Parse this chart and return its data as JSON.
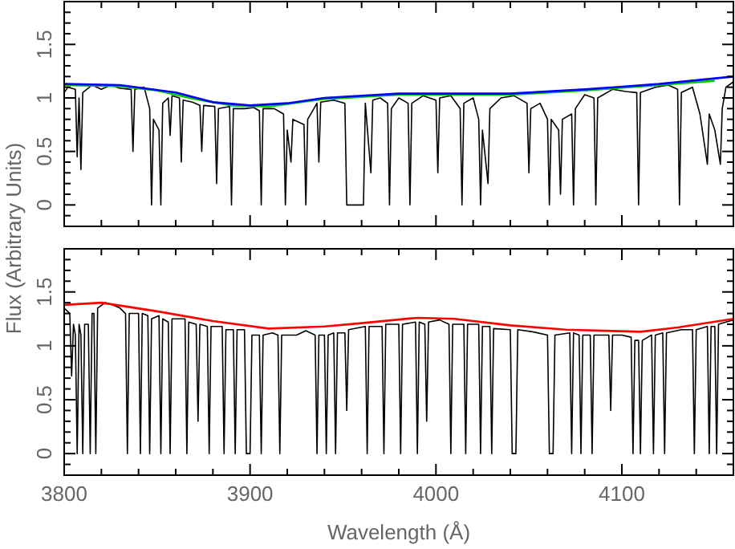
{
  "chart_data": [
    {
      "type": "line",
      "ylabel": "Flux (Arbitrary Units)",
      "xlim": [
        3800,
        4160
      ],
      "ylim": [
        -0.2,
        1.9
      ],
      "tick_labels": "y",
      "xticks": [
        3800,
        {
          "value": 3820,
          "label": null
        },
        {
          "value": 3840,
          "label": null
        },
        {
          "value": 3860,
          "label": null
        },
        {
          "value": 3880,
          "label": null
        },
        3900,
        {
          "value": 3920,
          "label": null
        },
        {
          "value": 3940,
          "label": null
        },
        {
          "value": 3960,
          "label": null
        },
        {
          "value": 3980,
          "label": null
        },
        4000,
        {
          "value": 4020,
          "label": null
        },
        {
          "value": 4040,
          "label": null
        },
        {
          "value": 4060,
          "label": null
        },
        {
          "value": 4080,
          "label": null
        },
        4100,
        {
          "value": 4120,
          "label": null
        },
        {
          "value": 4140,
          "label": null
        },
        {
          "value": 4160,
          "label": null
        }
      ],
      "yticks": [
        {
          "value": -0.2,
          "label": null
        },
        {
          "value": -0.1,
          "label": null
        },
        0,
        {
          "value": 0.1,
          "label": null
        },
        {
          "value": 0.2,
          "label": null
        },
        {
          "value": 0.3,
          "label": null
        },
        {
          "value": 0.4,
          "label": null
        },
        0.5,
        {
          "value": 0.6,
          "label": null
        },
        {
          "value": 0.7,
          "label": null
        },
        {
          "value": 0.8,
          "label": null
        },
        {
          "value": 0.9,
          "label": null
        },
        1,
        {
          "value": 1.1,
          "label": null
        },
        {
          "value": 1.2,
          "label": null
        },
        {
          "value": 1.3,
          "label": null
        },
        {
          "value": 1.4,
          "label": null
        },
        1.5,
        {
          "value": 1.6,
          "label": null
        },
        {
          "value": 1.7,
          "label": null
        },
        {
          "value": 1.8,
          "label": null
        },
        {
          "value": 1.9,
          "label": null
        }
      ],
      "series": [
        {
          "color": "#000000",
          "x": [
            3800,
            3802,
            3806,
            3807,
            3808,
            3809,
            3810,
            3815,
            3820,
            3825,
            3830,
            3836,
            3837,
            3838,
            3843,
            3846,
            3847,
            3848,
            3851,
            3852,
            3853,
            3856,
            3857,
            3858,
            3862,
            3863,
            3864,
            3869,
            3873,
            3874,
            3875,
            3881,
            3882,
            3883,
            3889,
            3890,
            3891,
            3897,
            3902,
            3905,
            3906,
            3907,
            3913,
            3918,
            3919,
            3920,
            3922,
            3923,
            3929,
            3930,
            3931,
            3936,
            3937,
            3938,
            3945,
            3951,
            3952,
            3961,
            3962,
            3965,
            3966,
            3970,
            3974,
            3975,
            3976,
            3980,
            3985,
            3986,
            3987,
            3993,
            4000,
            4001,
            4002,
            4008,
            4013,
            4014,
            4015,
            4020,
            4023,
            4024,
            4025,
            4028,
            4029,
            4035,
            4042,
            4049,
            4050,
            4051,
            4056,
            4060,
            4061,
            4062,
            4066,
            4067,
            4068,
            4073,
            4074,
            4075,
            4080,
            4085,
            4086,
            4087,
            4095,
            4102,
            4108,
            4109,
            4110,
            4118,
            4125,
            4130,
            4131,
            4132,
            4138,
            4142,
            4146,
            4147,
            4150,
            4153,
            4154,
            4156,
            4160
          ],
          "values": [
            1.05,
            1.1,
            1.08,
            0.45,
            1.0,
            0.33,
            1.05,
            1.12,
            1.08,
            1.12,
            1.09,
            1.08,
            0.5,
            1.08,
            1.1,
            0.9,
            0.0,
            0.8,
            0.7,
            0.0,
            0.95,
            1.0,
            0.65,
            1.02,
            1.0,
            0.4,
            0.98,
            0.96,
            0.93,
            0.5,
            0.93,
            0.92,
            0.2,
            0.9,
            0.92,
            0.0,
            0.9,
            0.9,
            0.91,
            0.88,
            0.0,
            0.9,
            0.9,
            0.85,
            0.0,
            0.7,
            0.4,
            0.8,
            0.75,
            0.0,
            0.8,
            0.95,
            0.4,
            0.96,
            0.98,
            0.95,
            0.0,
            0.0,
            0.95,
            0.3,
            0.98,
            1.0,
            0.95,
            0.0,
            0.9,
            1.0,
            0.95,
            0.0,
            0.95,
            1.02,
            0.98,
            0.3,
            1.0,
            1.02,
            0.9,
            0.0,
            0.95,
            1.0,
            0.8,
            0.0,
            0.7,
            0.2,
            0.9,
            1.0,
            1.02,
            0.95,
            0.3,
            0.9,
            0.95,
            0.8,
            0.0,
            0.8,
            0.7,
            0.1,
            0.8,
            0.85,
            0.0,
            0.9,
            1.03,
            1.0,
            0.0,
            1.0,
            1.08,
            1.06,
            1.05,
            0.0,
            1.05,
            1.1,
            1.12,
            1.08,
            0.0,
            1.05,
            1.1,
            0.85,
            0.38,
            0.85,
            0.7,
            0.38,
            0.9,
            1.1,
            1.15
          ]
        },
        {
          "color": "#00cc00",
          "x": [
            3800,
            3830,
            3850,
            3870,
            3890,
            3910,
            3940,
            3980,
            4040,
            4080,
            4120,
            4150
          ],
          "values": [
            1.12,
            1.11,
            1.07,
            0.99,
            0.93,
            0.92,
            0.99,
            1.03,
            1.03,
            1.07,
            1.12,
            1.16
          ]
        },
        {
          "color": "#0000ff",
          "x": [
            3800,
            3830,
            3860,
            3880,
            3900,
            3920,
            3940,
            3980,
            4040,
            4080,
            4120,
            4160
          ],
          "values": [
            1.13,
            1.12,
            1.05,
            0.96,
            0.93,
            0.95,
            1.0,
            1.04,
            1.04,
            1.08,
            1.13,
            1.2
          ]
        }
      ]
    },
    {
      "type": "line",
      "xlabel": "Wavelength (Å)",
      "xlim": [
        3800,
        4160
      ],
      "ylim": [
        -0.2,
        1.9
      ],
      "xticks": [
        3800,
        {
          "value": 3820,
          "label": null
        },
        {
          "value": 3840,
          "label": null
        },
        {
          "value": 3860,
          "label": null
        },
        {
          "value": 3880,
          "label": null
        },
        3900,
        {
          "value": 3920,
          "label": null
        },
        {
          "value": 3940,
          "label": null
        },
        {
          "value": 3960,
          "label": null
        },
        {
          "value": 3980,
          "label": null
        },
        4000,
        {
          "value": 4020,
          "label": null
        },
        {
          "value": 4040,
          "label": null
        },
        {
          "value": 4060,
          "label": null
        },
        {
          "value": 4080,
          "label": null
        },
        4100,
        {
          "value": 4120,
          "label": null
        },
        {
          "value": 4140,
          "label": null
        },
        {
          "value": 4160,
          "label": null
        }
      ],
      "yticks": [
        {
          "value": -0.2,
          "label": null
        },
        {
          "value": -0.1,
          "label": null
        },
        0,
        {
          "value": 0.1,
          "label": null
        },
        {
          "value": 0.2,
          "label": null
        },
        {
          "value": 0.3,
          "label": null
        },
        {
          "value": 0.4,
          "label": null
        },
        0.5,
        {
          "value": 0.6,
          "label": null
        },
        {
          "value": 0.7,
          "label": null
        },
        {
          "value": 0.8,
          "label": null
        },
        {
          "value": 0.9,
          "label": null
        },
        1,
        {
          "value": 1.1,
          "label": null
        },
        {
          "value": 1.2,
          "label": null
        },
        {
          "value": 1.3,
          "label": null
        },
        {
          "value": 1.4,
          "label": null
        },
        1.5,
        {
          "value": 1.6,
          "label": null
        },
        {
          "value": 1.7,
          "label": null
        },
        {
          "value": 1.8,
          "label": null
        },
        {
          "value": 1.9,
          "label": null
        }
      ],
      "series": [
        {
          "color": "#000000",
          "x": [
            3800,
            3803,
            3804,
            3805,
            3806,
            3807,
            3808,
            3809,
            3810,
            3811,
            3813,
            3814,
            3815,
            3816,
            3817,
            3818,
            3822,
            3826,
            3830,
            3833,
            3834,
            3835,
            3840,
            3841,
            3842,
            3845,
            3846,
            3847,
            3851,
            3852,
            3853,
            3856,
            3857,
            3858,
            3865,
            3866,
            3867,
            3871,
            3872,
            3873,
            3877,
            3878,
            3879,
            3885,
            3886,
            3887,
            3891,
            3892,
            3893,
            3897,
            3898,
            3900,
            3901,
            3905,
            3906,
            3907,
            3912,
            3915,
            3916,
            3917,
            3925,
            3930,
            3935,
            3936,
            3937,
            3940,
            3941,
            3942,
            3945,
            3946,
            3947,
            3951,
            3952,
            3953,
            3962,
            3963,
            3964,
            3971,
            3972,
            3973,
            3980,
            3981,
            3982,
            3989,
            3990,
            3991,
            3994,
            3995,
            3996,
            4002,
            4007,
            4008,
            4009,
            4015,
            4016,
            4017,
            4023,
            4024,
            4025,
            4029,
            4030,
            4031,
            4040,
            4041,
            4043,
            4044,
            4052,
            4060,
            4061,
            4063,
            4064,
            4072,
            4073,
            4074,
            4077,
            4078,
            4079,
            4083,
            4084,
            4085,
            4093,
            4094,
            4095,
            4100,
            4105,
            4106,
            4107,
            4109,
            4110,
            4111,
            4116,
            4117,
            4118,
            4122,
            4123,
            4124,
            4132,
            4138,
            4139,
            4140,
            4146,
            4147,
            4148,
            4150,
            4151,
            4152,
            4156,
            4160
          ],
          "values": [
            1.35,
            1.3,
            0.72,
            1.2,
            1.1,
            0,
            1.2,
            1.1,
            0,
            1.2,
            1.2,
            0,
            1.3,
            1.3,
            0,
            1.35,
            1.4,
            1.38,
            1.35,
            1.3,
            0,
            1.3,
            1.3,
            0,
            1.3,
            1.28,
            0,
            1.25,
            1.28,
            0,
            1.25,
            1.22,
            0,
            1.25,
            1.25,
            0,
            1.22,
            1.2,
            0.3,
            1.2,
            1.18,
            0,
            1.18,
            1.18,
            0,
            1.15,
            1.15,
            0,
            1.15,
            1.15,
            0,
            0,
            1.1,
            1.1,
            0,
            1.1,
            1.12,
            1.1,
            0,
            1.1,
            1.1,
            1.14,
            1.1,
            0,
            1.1,
            1.1,
            0,
            1.1,
            1.12,
            0,
            1.12,
            1.12,
            0.4,
            1.15,
            1.18,
            0,
            1.18,
            1.18,
            0,
            1.2,
            1.2,
            0,
            1.2,
            1.22,
            0,
            1.22,
            1.2,
            0.3,
            1.22,
            1.24,
            1.2,
            0,
            1.2,
            1.2,
            0,
            1.2,
            1.2,
            0,
            1.18,
            1.18,
            0,
            1.16,
            1.15,
            0,
            0,
            1.15,
            1.13,
            1.1,
            0,
            0,
            1.1,
            1.12,
            0,
            1.12,
            1.1,
            0,
            1.1,
            1.1,
            0,
            1.1,
            1.1,
            0.4,
            1.1,
            1.1,
            1.08,
            0,
            1.05,
            1.05,
            0,
            1.05,
            1.1,
            0,
            1.1,
            1.12,
            0,
            1.12,
            1.15,
            1.15,
            0,
            1.15,
            1.18,
            0,
            1.18,
            1.18,
            0,
            1.2,
            1.22,
            1.24
          ]
        },
        {
          "color": "#ff0000",
          "x": [
            3800,
            3820,
            3850,
            3880,
            3910,
            3940,
            3960,
            3990,
            4010,
            4040,
            4070,
            4110,
            4130,
            4160
          ],
          "values": [
            1.38,
            1.4,
            1.32,
            1.23,
            1.16,
            1.18,
            1.21,
            1.26,
            1.25,
            1.19,
            1.15,
            1.13,
            1.17,
            1.25
          ]
        }
      ]
    }
  ]
}
